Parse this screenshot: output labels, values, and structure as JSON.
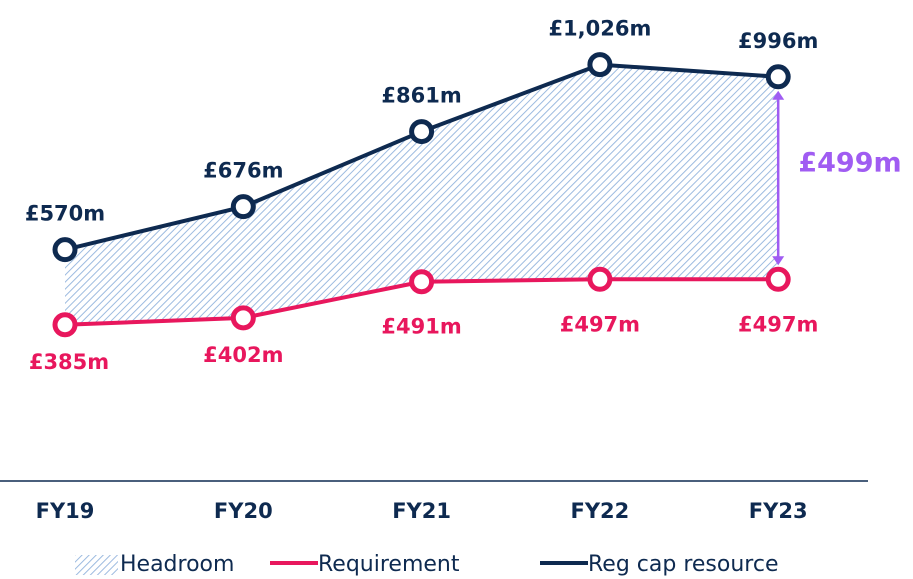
{
  "chart_data": {
    "type": "line",
    "categories": [
      "FY19",
      "FY20",
      "FY21",
      "FY22",
      "FY23"
    ],
    "series": [
      {
        "name": "Requirement",
        "color": "#e8175d",
        "values": [
          385,
          402,
          491,
          497,
          497
        ],
        "value_labels": [
          "£385m",
          "£402m",
          "£491m",
          "£497m",
          "£497m"
        ]
      },
      {
        "name": "Reg cap resource",
        "color": "#0e2a50",
        "values": [
          570,
          676,
          861,
          1026,
          996
        ],
        "value_labels": [
          "£570m",
          "£676m",
          "£861m",
          "£1,026m",
          "£996m"
        ]
      }
    ],
    "headroom": {
      "name": "Headroom",
      "color": "#9dbbe0"
    },
    "annotation": {
      "text": "£499m",
      "color": "#a05cf2"
    },
    "ylim": [
      0,
      1200
    ]
  }
}
